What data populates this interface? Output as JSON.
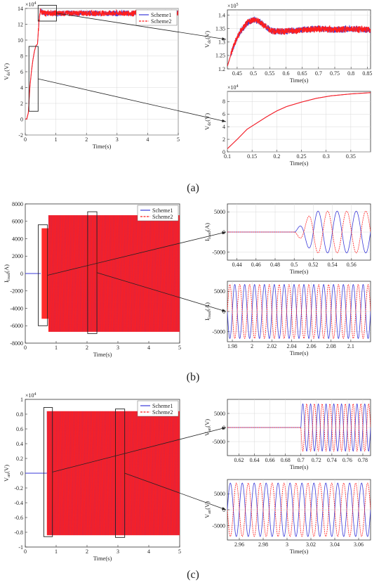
{
  "figure": {
    "panel_labels": [
      "(a)",
      "(b)",
      "(c)"
    ]
  },
  "colors": {
    "scheme1": "#3a3ad9",
    "scheme2": "#ff1f1f",
    "axis": "#333333",
    "grid": "#d8d8d8",
    "zoom": "#222222"
  },
  "chart_data": [
    {
      "id": "a_main",
      "type": "line",
      "panel": "(a)",
      "xlabel": "Time(s)",
      "ylabel": "V_dc(V)",
      "exponent": "×10^4",
      "xlim": [
        0,
        5
      ],
      "ylim": [
        -2,
        14
      ],
      "xticks": [
        "0",
        "1",
        "2",
        "3",
        "4",
        "5"
      ],
      "yticks": [
        "-2",
        "0",
        "2",
        "4",
        "6",
        "8",
        "10",
        "12",
        "14"
      ],
      "grid": true,
      "legend": {
        "placement": "top-right",
        "entries": [
          "Scheme1",
          "Scheme2"
        ]
      },
      "series": [
        {
          "name": "Scheme1"
        },
        {
          "name": "Scheme2"
        }
      ],
      "points": [
        [
          0,
          0
        ],
        [
          0.05,
          0.05
        ],
        [
          0.1,
          0.8
        ],
        [
          0.15,
          4
        ],
        [
          0.2,
          6
        ],
        [
          0.25,
          7.5
        ],
        [
          0.3,
          8.6
        ],
        [
          0.35,
          9.3
        ],
        [
          0.4,
          9.5
        ],
        [
          0.45,
          12.5
        ],
        [
          0.5,
          13.9
        ],
        [
          0.55,
          13.5
        ],
        [
          0.6,
          13.4
        ],
        [
          5,
          13.4
        ]
      ],
      "noise": 0.35,
      "noise_from": 0.42
    },
    {
      "id": "a_zoom1",
      "type": "line",
      "panel": "(a)",
      "xlabel": "Time(s)",
      "ylabel": "V_dc(V)",
      "exponent": "×10^5",
      "xlim": [
        0.42,
        0.86
      ],
      "ylim": [
        1.2,
        1.42
      ],
      "xticks": [
        "0.45",
        "0.5",
        "0.55",
        "0.6",
        "0.65",
        "0.7",
        "0.75",
        "0.8",
        "0.85"
      ],
      "yticks": [
        "1.2",
        "1.25",
        "1.3",
        "1.35",
        "1.4"
      ],
      "grid": true,
      "points": [
        [
          0.42,
          1.21
        ],
        [
          0.44,
          1.29
        ],
        [
          0.46,
          1.34
        ],
        [
          0.48,
          1.37
        ],
        [
          0.5,
          1.385
        ],
        [
          0.52,
          1.375
        ],
        [
          0.54,
          1.355
        ],
        [
          0.56,
          1.34
        ],
        [
          0.6,
          1.34
        ],
        [
          0.65,
          1.345
        ],
        [
          0.7,
          1.35
        ],
        [
          0.75,
          1.345
        ],
        [
          0.8,
          1.35
        ],
        [
          0.86,
          1.345
        ]
      ],
      "noise": 0.012,
      "noise_from": 0.43
    },
    {
      "id": "a_zoom2",
      "type": "line",
      "panel": "(a)",
      "xlabel": "Time(s)",
      "ylabel": "V_dc(V)",
      "exponent": "×10^4",
      "xlim": [
        0.1,
        0.39
      ],
      "ylim": [
        0,
        9.6
      ],
      "xticks": [
        "0.1",
        "0.15",
        "0.2",
        "0.25",
        "0.3",
        "0.35"
      ],
      "yticks": [
        "0",
        "2",
        "4",
        "6",
        "8"
      ],
      "grid": true,
      "points": [
        [
          0.1,
          0.5
        ],
        [
          0.12,
          2
        ],
        [
          0.14,
          3.6
        ],
        [
          0.16,
          4.6
        ],
        [
          0.18,
          5.6
        ],
        [
          0.2,
          6.5
        ],
        [
          0.22,
          7.2
        ],
        [
          0.25,
          7.9
        ],
        [
          0.28,
          8.5
        ],
        [
          0.31,
          8.9
        ],
        [
          0.35,
          9.2
        ],
        [
          0.39,
          9.4
        ]
      ],
      "noise": 0,
      "noise_from": 1
    },
    {
      "id": "b_main",
      "type": "line",
      "panel": "(b)",
      "xlabel": "Time(s)",
      "ylabel": "I_load(A)",
      "xlim": [
        0,
        5
      ],
      "ylim": [
        -8000,
        8000
      ],
      "xticks": [
        "0",
        "1",
        "2",
        "3",
        "4",
        "5"
      ],
      "yticks": [
        "-8000",
        "-6000",
        "-4000",
        "-2000",
        "0",
        "2000",
        "4000",
        "6000",
        "8000"
      ],
      "grid": false,
      "legend": {
        "placement": "top-right",
        "entries": [
          "Scheme1",
          "Scheme2"
        ]
      },
      "series": [
        {
          "name": "Scheme1"
        },
        {
          "name": "Scheme2"
        }
      ],
      "band": {
        "t_start": 0.5,
        "amp": 6700,
        "ramp_end": 0.75,
        "ramp_amp": 5200,
        "freq": 50
      }
    },
    {
      "id": "b_zoom1",
      "type": "line",
      "panel": "(b)",
      "xlabel": "Time(s)",
      "ylabel": "I_load(A)",
      "xlim": [
        0.43,
        0.58
      ],
      "ylim": [
        -7000,
        7000
      ],
      "xticks": [
        "0.44",
        "0.46",
        "0.48",
        "0.5",
        "0.52",
        "0.54",
        "0.56"
      ],
      "yticks": [
        "-5000",
        "0",
        "5000"
      ],
      "grid": true,
      "sine": {
        "t_start": 0.5,
        "amp": 5200,
        "freq": 50,
        "rise": 0.02
      }
    },
    {
      "id": "b_zoom2",
      "type": "line",
      "panel": "(b)",
      "xlabel": "Time(s)",
      "ylabel": "I_load(A)",
      "xlim": [
        1.975,
        2.12
      ],
      "ylim": [
        -7500,
        7500
      ],
      "xticks": [
        "1.98",
        "2",
        "2.02",
        "2.04",
        "2.06",
        "2.08",
        "2.1"
      ],
      "yticks": [
        "-5000",
        "0",
        "5000"
      ],
      "grid": true,
      "sine": {
        "t_start": 0,
        "amp": 6700,
        "freq": 100,
        "rise": 0
      }
    },
    {
      "id": "c_main",
      "type": "line",
      "panel": "(c)",
      "xlabel": "Time(s)",
      "ylabel": "V_an(V)",
      "exponent": "×10^4",
      "xlim": [
        0,
        5
      ],
      "ylim": [
        -1,
        1
      ],
      "xticks": [
        "0",
        "1",
        "2",
        "3",
        "4",
        "5"
      ],
      "yticks": [
        "-1",
        "-0.8",
        "-0.6",
        "-0.4",
        "-0.2",
        "0",
        "0.2",
        "0.4",
        "0.6",
        "0.8",
        "1"
      ],
      "grid": false,
      "legend": {
        "placement": "top-right",
        "entries": [
          "Scheme1",
          "Scheme2"
        ]
      },
      "series": [
        {
          "name": "Scheme1"
        },
        {
          "name": "Scheme2"
        }
      ],
      "band": {
        "t_start": 0.7,
        "amp": 0.84,
        "ramp_end": 0.7,
        "ramp_amp": 0.84,
        "freq": 50
      }
    },
    {
      "id": "c_zoom1",
      "type": "line",
      "panel": "(c)",
      "xlabel": "Time(s)",
      "ylabel": "V_an(V)",
      "xlim": [
        0.605,
        0.79
      ],
      "ylim": [
        -10000,
        10000
      ],
      "xticks": [
        "0.62",
        "0.64",
        "0.66",
        "0.68",
        "0.7",
        "0.72",
        "0.74",
        "0.76",
        "0.78"
      ],
      "yticks": [
        "-5000",
        "0",
        "5000"
      ],
      "grid": true,
      "sine": {
        "t_start": 0.7,
        "amp": 8400,
        "freq": 100,
        "rise": 0
      }
    },
    {
      "id": "c_zoom2",
      "type": "line",
      "panel": "(c)",
      "xlabel": "Time(s)",
      "ylabel": "V_an(V)",
      "xlim": [
        2.95,
        3.07
      ],
      "ylim": [
        -9500,
        9500
      ],
      "xticks": [
        "2.96",
        "2.98",
        "3",
        "3.02",
        "3.04",
        "3.06"
      ],
      "yticks": [
        "-5000",
        "0",
        "5000"
      ],
      "grid": true,
      "sine": {
        "t_start": 0,
        "amp": 8400,
        "freq": 100,
        "rise": 0
      }
    }
  ]
}
